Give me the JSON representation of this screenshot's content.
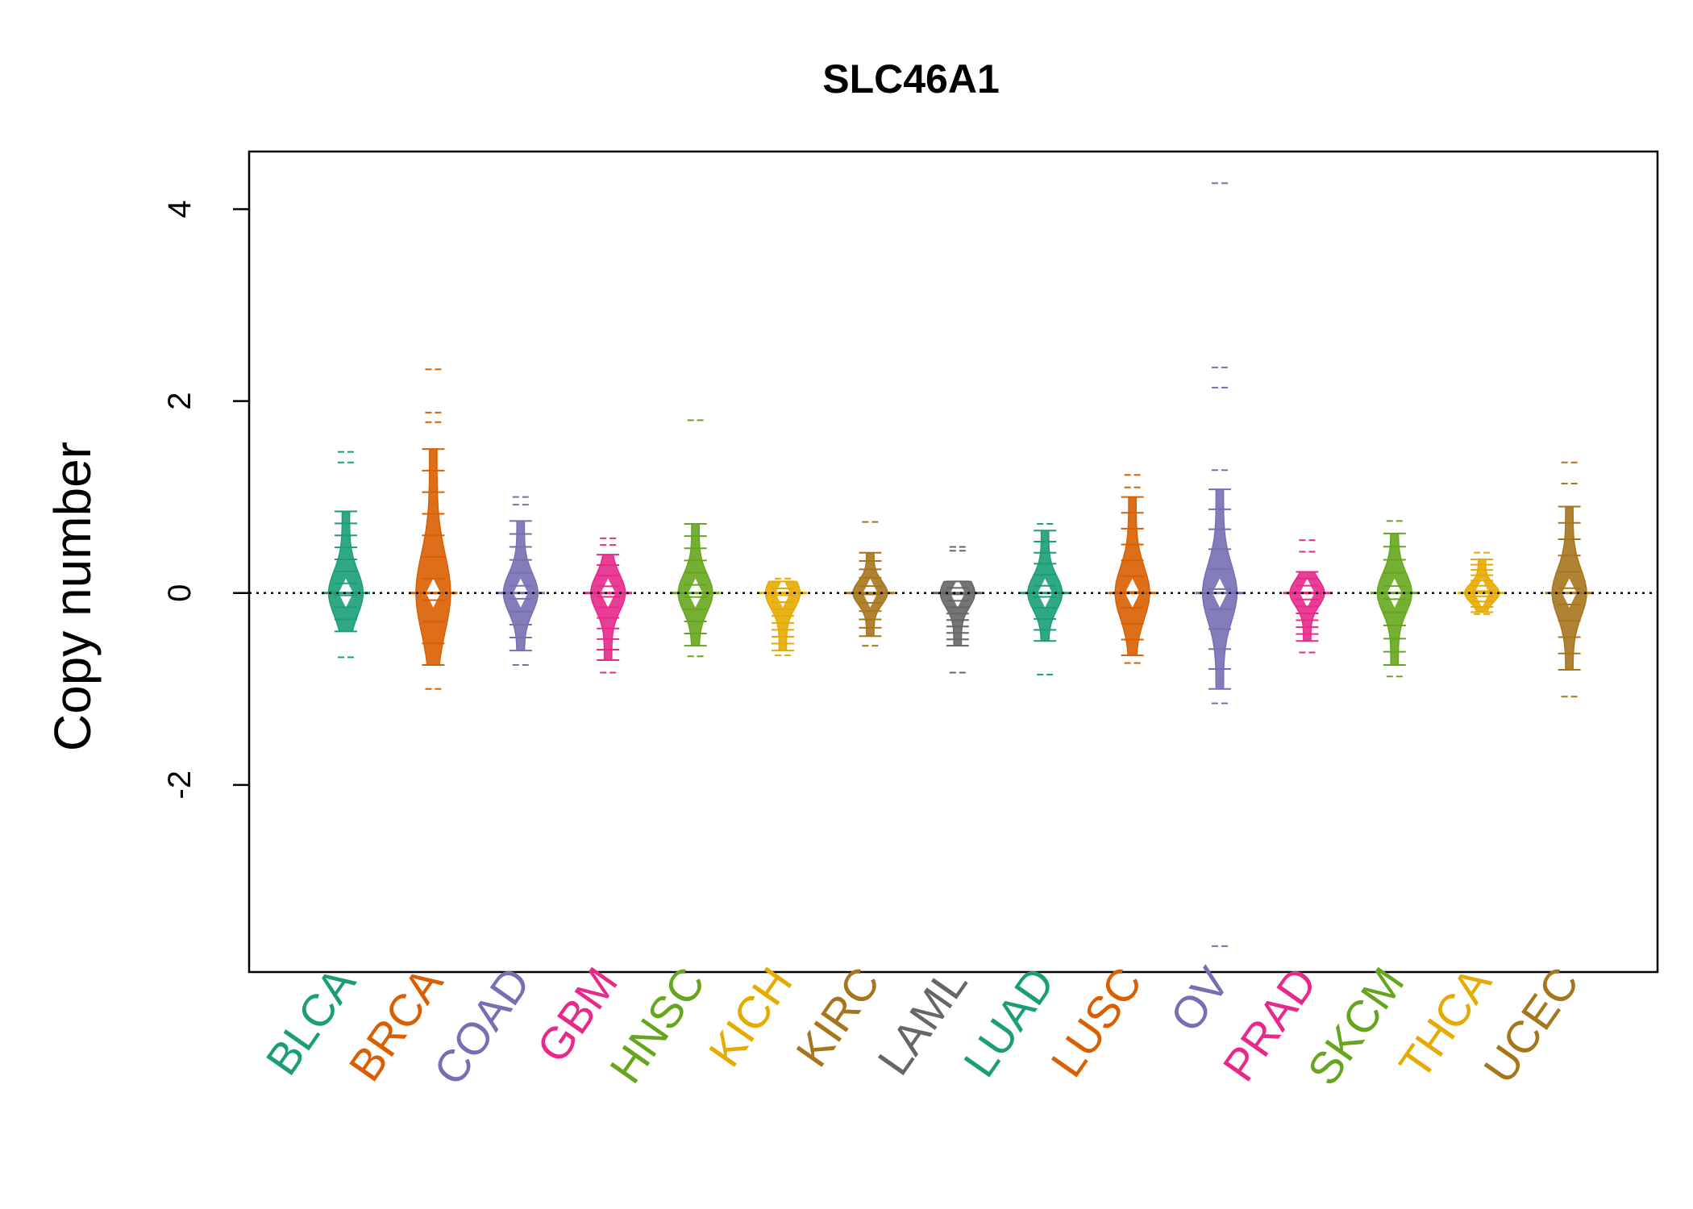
{
  "chart_data": {
    "type": "beanplot",
    "title": "SLC46A1",
    "xlabel": "",
    "ylabel": "Copy number",
    "ylim": [
      -3.95,
      4.6
    ],
    "yticks": [
      -2,
      0,
      2,
      4
    ],
    "yticklabels": [
      "-2",
      "0",
      "2",
      "4"
    ],
    "reference_line": 0,
    "categories": [
      "BLCA",
      "BRCA",
      "COAD",
      "GBM",
      "HNSC",
      "KICH",
      "KIRC",
      "LAML",
      "LUAD",
      "LUSC",
      "OV",
      "PRAD",
      "SKCM",
      "THCA",
      "UCEC"
    ],
    "colors": [
      "#1B9E77",
      "#D95F02",
      "#7570B3",
      "#E7298A",
      "#66A61E",
      "#E6AB02",
      "#A6761D",
      "#666666",
      "#1B9E77",
      "#D95F02",
      "#7570B3",
      "#E7298A",
      "#66A61E",
      "#E6AB02",
      "#A6761D"
    ],
    "series": [
      {
        "name": "BLCA",
        "min": -0.67,
        "max": 1.47,
        "outliers": [
          1.47,
          1.36,
          -0.67
        ],
        "core": [
          -0.4,
          0.85
        ]
      },
      {
        "name": "BRCA",
        "min": -1.0,
        "max": 2.33,
        "outliers": [
          2.33,
          1.88,
          1.78,
          -1.0
        ],
        "core": [
          -0.75,
          1.5
        ]
      },
      {
        "name": "COAD",
        "min": -0.75,
        "max": 1.0,
        "outliers": [
          1.0,
          0.92,
          -0.75
        ],
        "core": [
          -0.6,
          0.75
        ]
      },
      {
        "name": "GBM",
        "min": -0.83,
        "max": 0.57,
        "outliers": [
          0.57,
          0.5,
          -0.83
        ],
        "core": [
          -0.7,
          0.4
        ]
      },
      {
        "name": "HNSC",
        "min": -0.66,
        "max": 1.8,
        "outliers": [
          1.8,
          -0.66
        ],
        "core": [
          -0.55,
          0.72
        ]
      },
      {
        "name": "KICH",
        "min": -0.65,
        "max": 0.15,
        "outliers": [
          0.15,
          -0.65
        ],
        "core": [
          -0.6,
          0.12
        ]
      },
      {
        "name": "KIRC",
        "min": -0.55,
        "max": 0.74,
        "outliers": [
          0.74,
          -0.55
        ],
        "core": [
          -0.45,
          0.42
        ]
      },
      {
        "name": "LAML",
        "min": -0.83,
        "max": 0.48,
        "outliers": [
          0.48,
          0.44,
          -0.83
        ],
        "core": [
          -0.55,
          0.12
        ]
      },
      {
        "name": "LUAD",
        "min": -0.85,
        "max": 0.72,
        "outliers": [
          0.72,
          -0.85
        ],
        "core": [
          -0.5,
          0.65
        ]
      },
      {
        "name": "LUSC",
        "min": -0.73,
        "max": 1.23,
        "outliers": [
          1.23,
          1.1,
          -0.73
        ],
        "core": [
          -0.65,
          1.0
        ]
      },
      {
        "name": "OV",
        "min": -3.68,
        "max": 4.27,
        "outliers": [
          4.27,
          2.35,
          2.14,
          1.28,
          -1.15,
          -3.68
        ],
        "core": [
          -1.0,
          1.08
        ]
      },
      {
        "name": "PRAD",
        "min": -0.62,
        "max": 0.55,
        "outliers": [
          0.55,
          0.43,
          -0.62
        ],
        "core": [
          -0.5,
          0.22
        ]
      },
      {
        "name": "SKCM",
        "min": -0.87,
        "max": 0.75,
        "outliers": [
          0.75,
          -0.87
        ],
        "core": [
          -0.75,
          0.62
        ]
      },
      {
        "name": "THCA",
        "min": -0.22,
        "max": 0.42,
        "outliers": [
          0.42,
          -0.22
        ],
        "core": [
          -0.2,
          0.35
        ]
      },
      {
        "name": "UCEC",
        "min": -1.08,
        "max": 1.36,
        "outliers": [
          1.36,
          1.14,
          -1.08
        ],
        "core": [
          -0.8,
          0.9
        ]
      }
    ]
  }
}
